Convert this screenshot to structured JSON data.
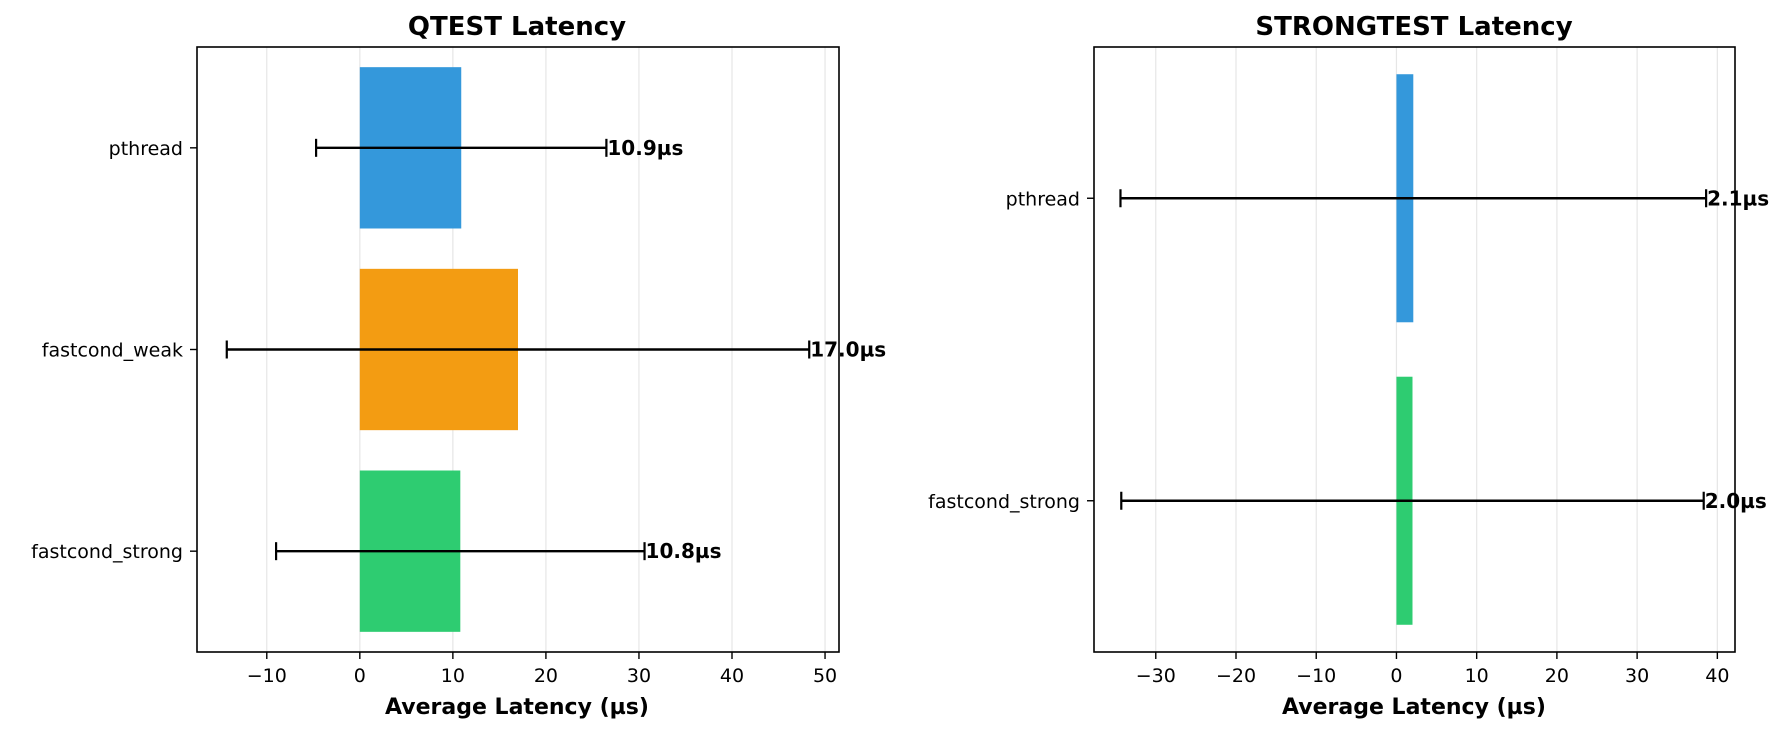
{
  "chart_data": [
    {
      "type": "bar",
      "orientation": "horizontal",
      "title": "QTEST Latency",
      "xlabel": "Average Latency (µs)",
      "ylabel": "",
      "categories": [
        "pthread",
        "fastcond_weak",
        "fastcond_strong"
      ],
      "values": [
        10.9,
        17.0,
        10.8
      ],
      "error_low": [
        -4.7,
        -14.3,
        -9.0
      ],
      "error_high": [
        26.5,
        48.3,
        30.6
      ],
      "data_labels": [
        "10.9µs",
        "17.0µs",
        "10.8µs"
      ],
      "colors": [
        "#3498db",
        "#f39c12",
        "#2ecc71"
      ],
      "xlim": [
        -17.5,
        51.5
      ],
      "xticks": [
        -10,
        0,
        10,
        20,
        30,
        40,
        50
      ],
      "xtick_labels": [
        "−10",
        "0",
        "10",
        "20",
        "30",
        "40",
        "50"
      ],
      "grid": "vertical"
    },
    {
      "type": "bar",
      "orientation": "horizontal",
      "title": "STRONGTEST Latency",
      "xlabel": "Average Latency (µs)",
      "ylabel": "",
      "categories": [
        "pthread",
        "fastcond_strong"
      ],
      "values": [
        2.1,
        2.0
      ],
      "error_low": [
        -34.4,
        -34.3
      ],
      "error_high": [
        38.6,
        38.3
      ],
      "data_labels": [
        "2.1µs",
        "2.0µs"
      ],
      "colors": [
        "#3498db",
        "#2ecc71"
      ],
      "xlim": [
        -37.7,
        42.2
      ],
      "xticks": [
        -30,
        -20,
        -10,
        0,
        10,
        20,
        30,
        40
      ],
      "xtick_labels": [
        "−30",
        "−20",
        "−10",
        "0",
        "10",
        "20",
        "30",
        "40"
      ],
      "grid": "vertical"
    }
  ]
}
